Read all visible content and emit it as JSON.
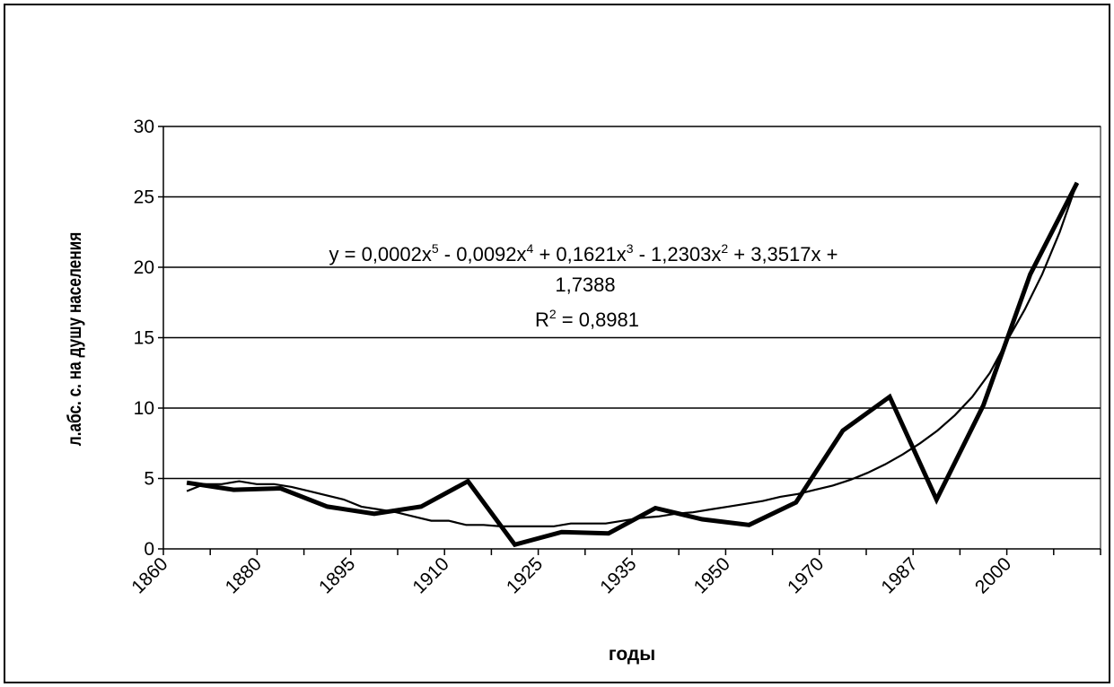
{
  "chart_data": {
    "type": "line",
    "title": "",
    "xlabel": "годы",
    "ylabel": "л.абс. с. на душу населения",
    "ylim": [
      0,
      30
    ],
    "yticks": [
      "0",
      "5",
      "10",
      "15",
      "20",
      "25",
      "30"
    ],
    "xticks": [
      "1860",
      "1880",
      "1895",
      "1910",
      "1925",
      "1935",
      "1950",
      "1970",
      "1987",
      "2000"
    ],
    "grid": true,
    "legend": "none",
    "series": [
      {
        "values": [
          4.1,
          4.6,
          4.6,
          4.8,
          4.6,
          4.6,
          4.4,
          4.1,
          3.8,
          3.5,
          3.0,
          2.8,
          2.6,
          2.3,
          2.0,
          2.0,
          1.7,
          1.7,
          1.6,
          1.6,
          1.6,
          1.6,
          1.8,
          1.8,
          1.8,
          2.0,
          2.2,
          2.3,
          2.5,
          2.6,
          2.8,
          3.0,
          3.2,
          3.4,
          3.7,
          3.9,
          4.2,
          4.5,
          4.9,
          5.4,
          6.0,
          6.7,
          7.5,
          8.4,
          9.5,
          10.8,
          12.5,
          14.8,
          17.0,
          19.5,
          22.5,
          26.0
        ]
      },
      {
        "values": [
          4.7,
          4.2,
          4.3,
          3.0,
          2.5,
          3.0,
          4.8,
          0.3,
          1.2,
          1.1,
          2.9,
          2.1,
          1.7,
          3.3,
          8.4,
          10.8,
          3.5,
          10.2,
          19.5,
          26.0
        ]
      }
    ]
  },
  "annotation": {
    "equation": {
      "y_eq": "y = 0,0002x",
      "exp5": "5",
      "t4": " - 0,0092x",
      "exp4": "4",
      "t3": " + 0,1621x",
      "exp3": "3",
      "t2": " - 1,2303x",
      "exp2": "2",
      "t1": " + 3,3517x +",
      "const": "1,7388"
    },
    "r2": {
      "label": "R",
      "exp": "2",
      "value": " = 0,8981"
    }
  }
}
